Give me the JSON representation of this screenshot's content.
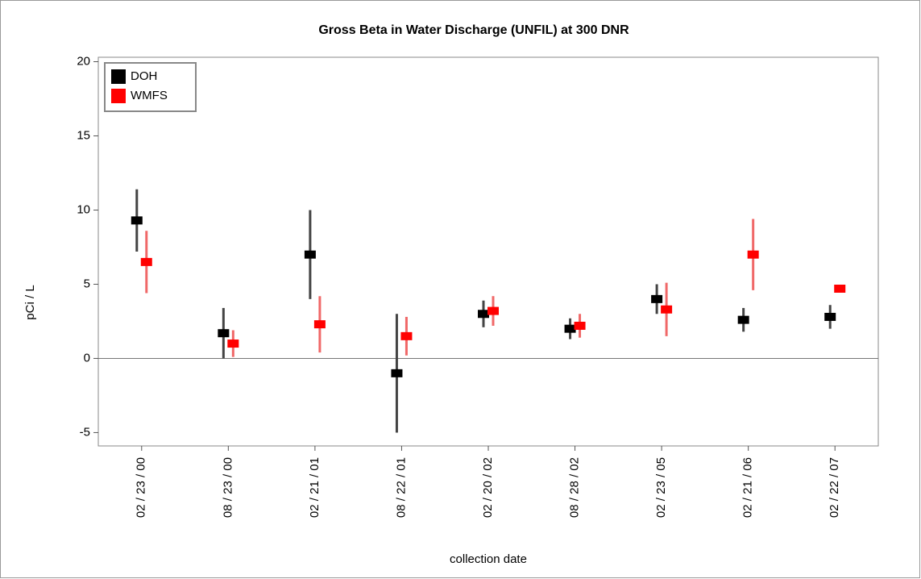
{
  "chart_data": {
    "type": "errorbar",
    "title": "Gross Beta in Water Discharge (UNFIL) at 300 DNR",
    "x_label": "collection date",
    "y_label": "pCi / L",
    "categories": [
      "02 / 23 / 00",
      "08 / 23 / 00",
      "02 / 21 / 01",
      "08 / 22 / 01",
      "02 / 20 / 02",
      "08 / 28 / 02",
      "02 / 23 / 05",
      "02 / 21 / 06",
      "02 / 22 / 07"
    ],
    "series": [
      {
        "name": "DOH",
        "color": "#000000",
        "error_color": "#444444",
        "values": [
          9.3,
          1.7,
          7.0,
          -1.0,
          3.0,
          2.0,
          4.0,
          2.6,
          2.8
        ],
        "errors": [
          2.1,
          1.7,
          3.0,
          4.0,
          0.9,
          0.7,
          1.0,
          0.8,
          0.8
        ]
      },
      {
        "name": "WMFS",
        "color": "#ff0000",
        "error_color": "#f06868",
        "values": [
          6.5,
          1.0,
          2.3,
          1.5,
          3.2,
          2.2,
          3.3,
          7.0,
          4.7
        ],
        "errors": [
          2.1,
          0.9,
          1.9,
          1.3,
          1.0,
          0.8,
          1.8,
          2.4,
          0.2
        ]
      }
    ],
    "ylim": [
      -5.9,
      20.3
    ],
    "yticks": [
      -5,
      0,
      5,
      10,
      15,
      20
    ],
    "zero_line": true,
    "legend": "top-left"
  }
}
